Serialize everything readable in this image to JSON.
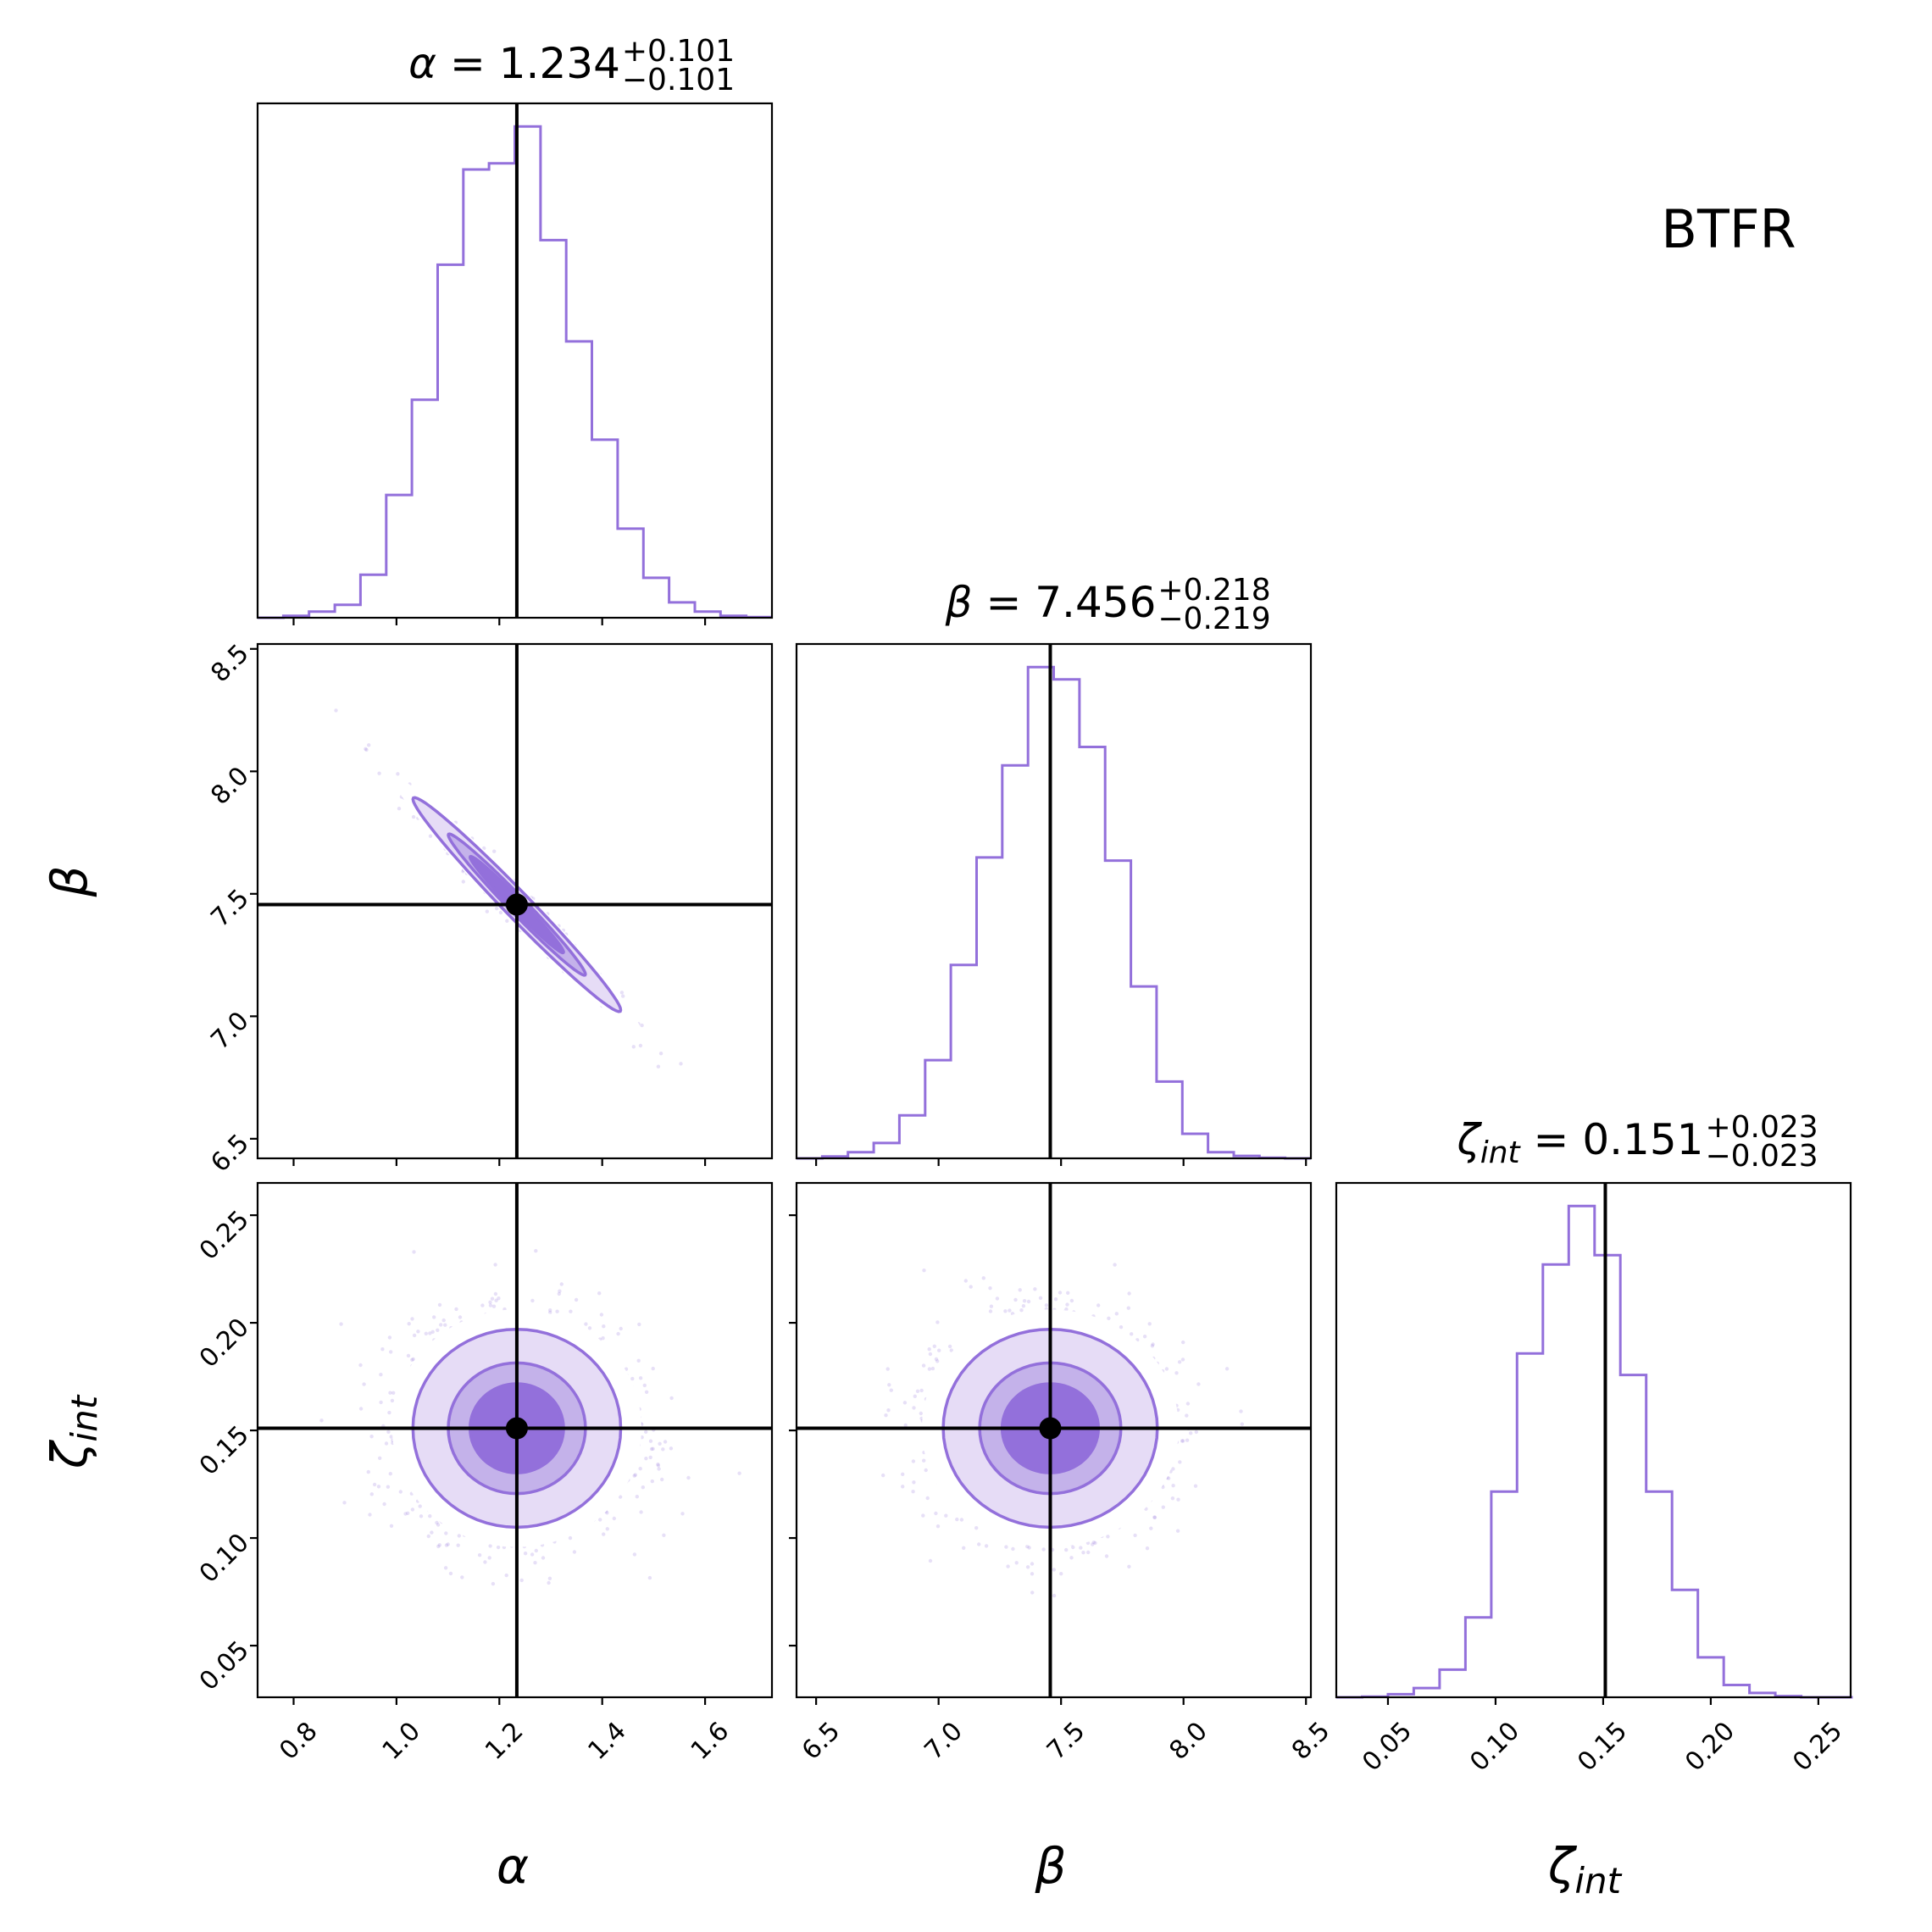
{
  "figure": {
    "label": "BTFR",
    "accent_color": "#9370DB",
    "truth_color": "#000000"
  },
  "chart_data": {
    "type": "corner",
    "parameters": [
      {
        "symbol": "α",
        "sub": "",
        "median": 1.234,
        "plus": "+0.101",
        "minus": "−0.101",
        "value_text": "1.234",
        "range": [
          0.73,
          1.73
        ],
        "ticks": [
          0.8,
          1.0,
          1.2,
          1.4,
          1.6
        ],
        "tick_labels": [
          "0.8",
          "1.0",
          "1.2",
          "1.4",
          "1.6"
        ]
      },
      {
        "symbol": "β",
        "sub": "",
        "median": 7.456,
        "plus": "+0.218",
        "minus": "−0.219",
        "value_text": "7.456",
        "range": [
          6.42,
          8.52
        ],
        "ticks": [
          6.5,
          7.0,
          7.5,
          8.0,
          8.5
        ],
        "tick_labels": [
          "6.5",
          "7.0",
          "7.5",
          "8.0",
          "8.5"
        ]
      },
      {
        "symbol": "ζ",
        "sub": "int",
        "median": 0.151,
        "plus": "+0.023",
        "minus": "−0.023",
        "value_text": "0.151",
        "range": [
          0.026,
          0.265
        ],
        "ticks": [
          0.05,
          0.1,
          0.15,
          0.2,
          0.25
        ],
        "tick_labels": [
          "0.05",
          "0.10",
          "0.15",
          "0.20",
          "0.25"
        ]
      }
    ],
    "histograms": [
      {
        "param": 0,
        "edges": [
          0.73,
          0.78,
          0.83,
          0.88,
          0.93,
          0.98,
          1.03,
          1.08,
          1.13,
          1.18,
          1.23,
          1.28,
          1.33,
          1.38,
          1.43,
          1.48,
          1.53,
          1.58,
          1.63,
          1.68,
          1.73
        ],
        "counts": [
          0,
          0.3,
          1,
          2.1,
          7,
          20,
          35.5,
          57.5,
          73,
          74,
          80,
          61.5,
          45,
          29,
          14.5,
          6.5,
          2.5,
          1,
          0.3,
          0.1
        ]
      },
      {
        "param": 1,
        "edges": [
          6.42,
          6.525,
          6.63,
          6.735,
          6.84,
          6.945,
          7.05,
          7.155,
          7.26,
          7.365,
          7.47,
          7.575,
          7.68,
          7.785,
          7.89,
          7.995,
          8.1,
          8.205,
          8.31,
          8.415,
          8.52
        ],
        "counts": [
          0,
          0.3,
          1,
          2.5,
          7,
          16,
          31.5,
          49,
          64,
          80,
          78,
          67,
          48.5,
          28,
          12.5,
          4,
          1,
          0.4,
          0.1,
          0
        ]
      },
      {
        "param": 2,
        "edges": [
          0.026,
          0.038,
          0.05,
          0.062,
          0.074,
          0.086,
          0.098,
          0.11,
          0.122,
          0.134,
          0.146,
          0.158,
          0.17,
          0.182,
          0.194,
          0.206,
          0.218,
          0.23,
          0.242,
          0.254,
          0.266
        ],
        "counts": [
          0,
          0.1,
          0.5,
          1.5,
          4.5,
          13,
          33.5,
          56,
          70.5,
          80,
          72,
          52.5,
          33.5,
          17.5,
          6.5,
          2,
          0.7,
          0.2,
          0,
          0
        ]
      }
    ],
    "correlations": [
      {
        "x": 0,
        "y": 1,
        "corr": -0.985
      },
      {
        "x": 0,
        "y": 2,
        "corr": 0.0
      },
      {
        "x": 1,
        "y": 2,
        "corr": 0.0
      }
    ],
    "contour_levels": [
      0.5,
      1.0,
      1.5,
      2.0
    ],
    "grid": false
  }
}
